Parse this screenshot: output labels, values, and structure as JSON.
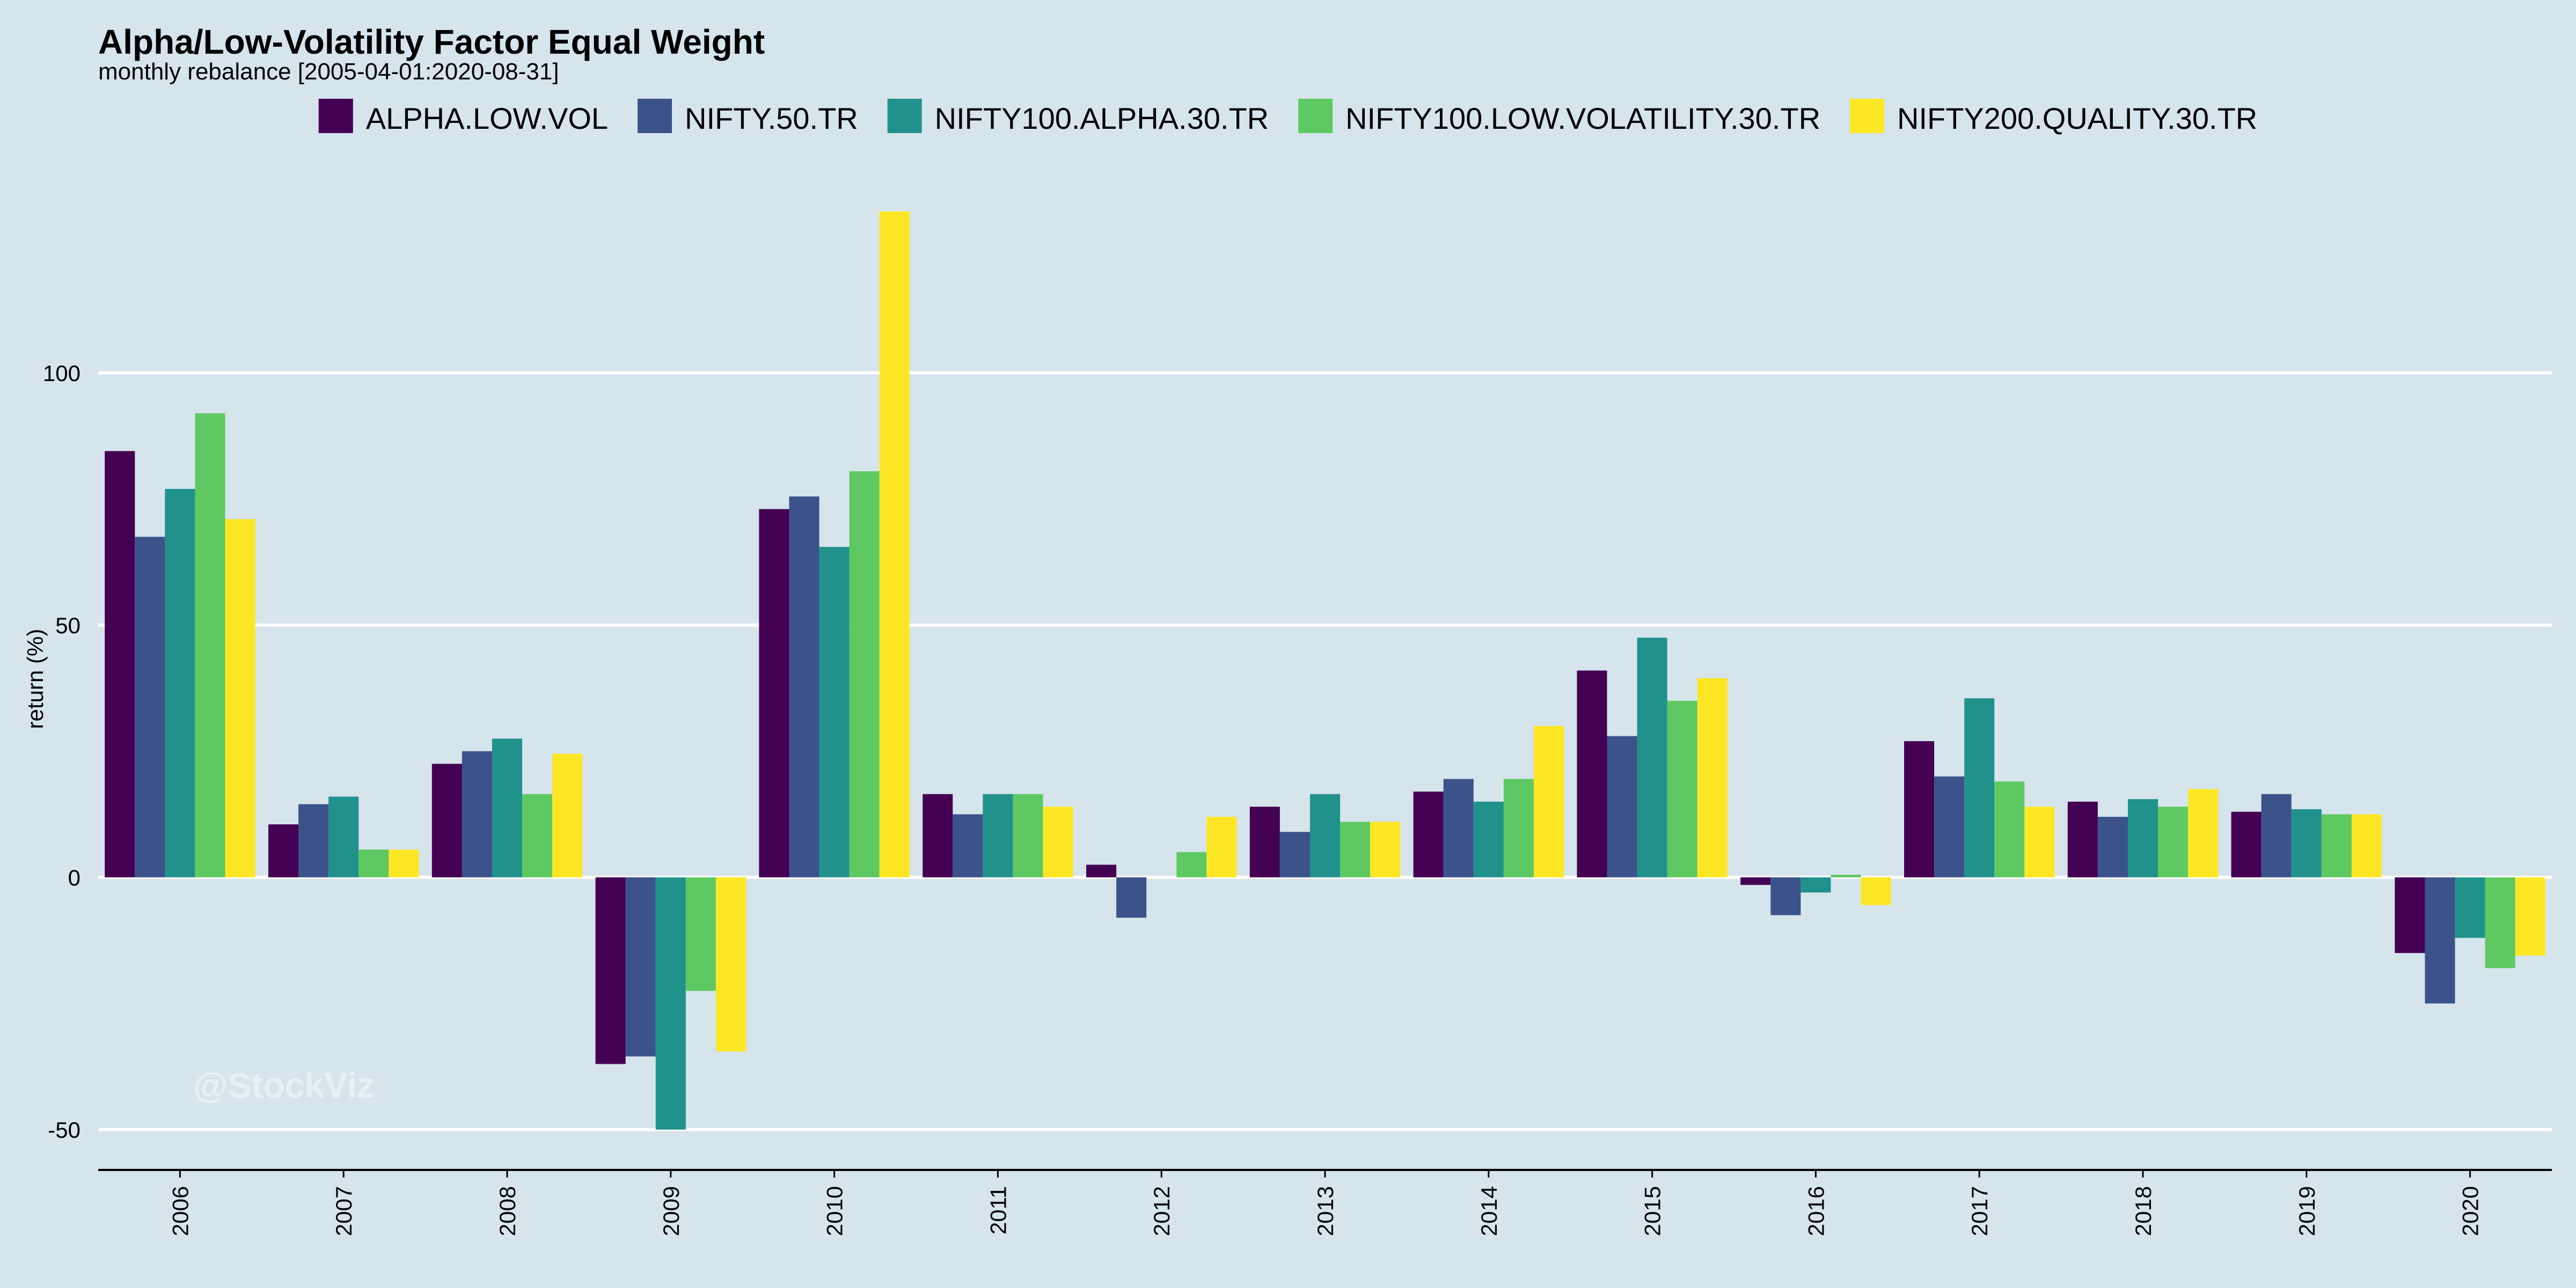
{
  "chart_data": {
    "type": "bar",
    "title": "Alpha/Low-Volatility Factor Equal Weight",
    "subtitle": "monthly rebalance [2005-04-01:2020-08-31]",
    "xlabel": "",
    "ylabel": "return (%)",
    "ylim": [
      -58,
      142
    ],
    "yticks": [
      -50,
      0,
      50,
      100
    ],
    "grid": true,
    "legend_position": "top",
    "watermark": "@StockViz",
    "categories": [
      "2006",
      "2007",
      "2008",
      "2009",
      "2010",
      "2011",
      "2012",
      "2013",
      "2014",
      "2015",
      "2016",
      "2017",
      "2018",
      "2019",
      "2020"
    ],
    "series": [
      {
        "name": "ALPHA.LOW.VOL",
        "color": "#440154",
        "values": [
          84.5,
          10.5,
          22.5,
          -37.0,
          73.0,
          16.5,
          2.5,
          14.0,
          17.0,
          41.0,
          -1.5,
          27.0,
          15.0,
          13.0,
          -15.0
        ]
      },
      {
        "name": "NIFTY.50.TR",
        "color": "#3b528b",
        "values": [
          67.5,
          14.5,
          25.0,
          -35.5,
          75.5,
          12.5,
          -8.0,
          9.0,
          19.5,
          28.0,
          -7.5,
          20.0,
          12.0,
          16.5,
          -25.0
        ]
      },
      {
        "name": "NIFTY100.ALPHA.30.TR",
        "color": "#21918c",
        "values": [
          77.0,
          16.0,
          27.5,
          -50.0,
          65.5,
          16.5,
          0.0,
          16.5,
          15.0,
          47.5,
          -3.0,
          35.5,
          15.5,
          13.5,
          -12.0
        ]
      },
      {
        "name": "NIFTY100.LOW.VOLATILITY.30.TR",
        "color": "#5ec962",
        "values": [
          92.0,
          5.5,
          16.5,
          -22.5,
          80.5,
          16.5,
          5.0,
          11.0,
          19.5,
          35.0,
          0.5,
          19.0,
          14.0,
          12.5,
          -18.0
        ]
      },
      {
        "name": "NIFTY200.QUALITY.30.TR",
        "color": "#fde725",
        "values": [
          71.0,
          5.5,
          24.5,
          -34.5,
          132.0,
          14.0,
          12.0,
          11.0,
          30.0,
          39.5,
          -5.5,
          14.0,
          17.5,
          12.5,
          -15.5
        ]
      }
    ]
  }
}
